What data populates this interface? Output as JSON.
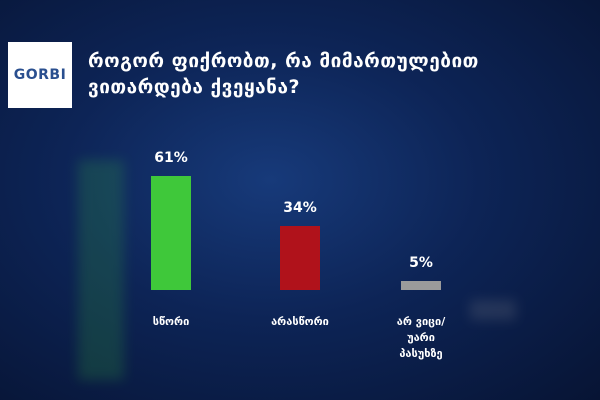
{
  "logo": "GORBI",
  "chart_data": {
    "type": "bar",
    "title": "როგორ ფიქრობთ, რა მიმართულებით ვითარდება ქვეყანა?",
    "categories": [
      "სწორი",
      "არასწორი",
      "არ ვიცი/ უარი პასუხზე"
    ],
    "values": [
      61,
      34,
      5
    ],
    "value_labels": [
      "61%",
      "34%",
      "5%"
    ],
    "colors": [
      "#3fc83a",
      "#b0121b",
      "#9b9b9b"
    ]
  }
}
